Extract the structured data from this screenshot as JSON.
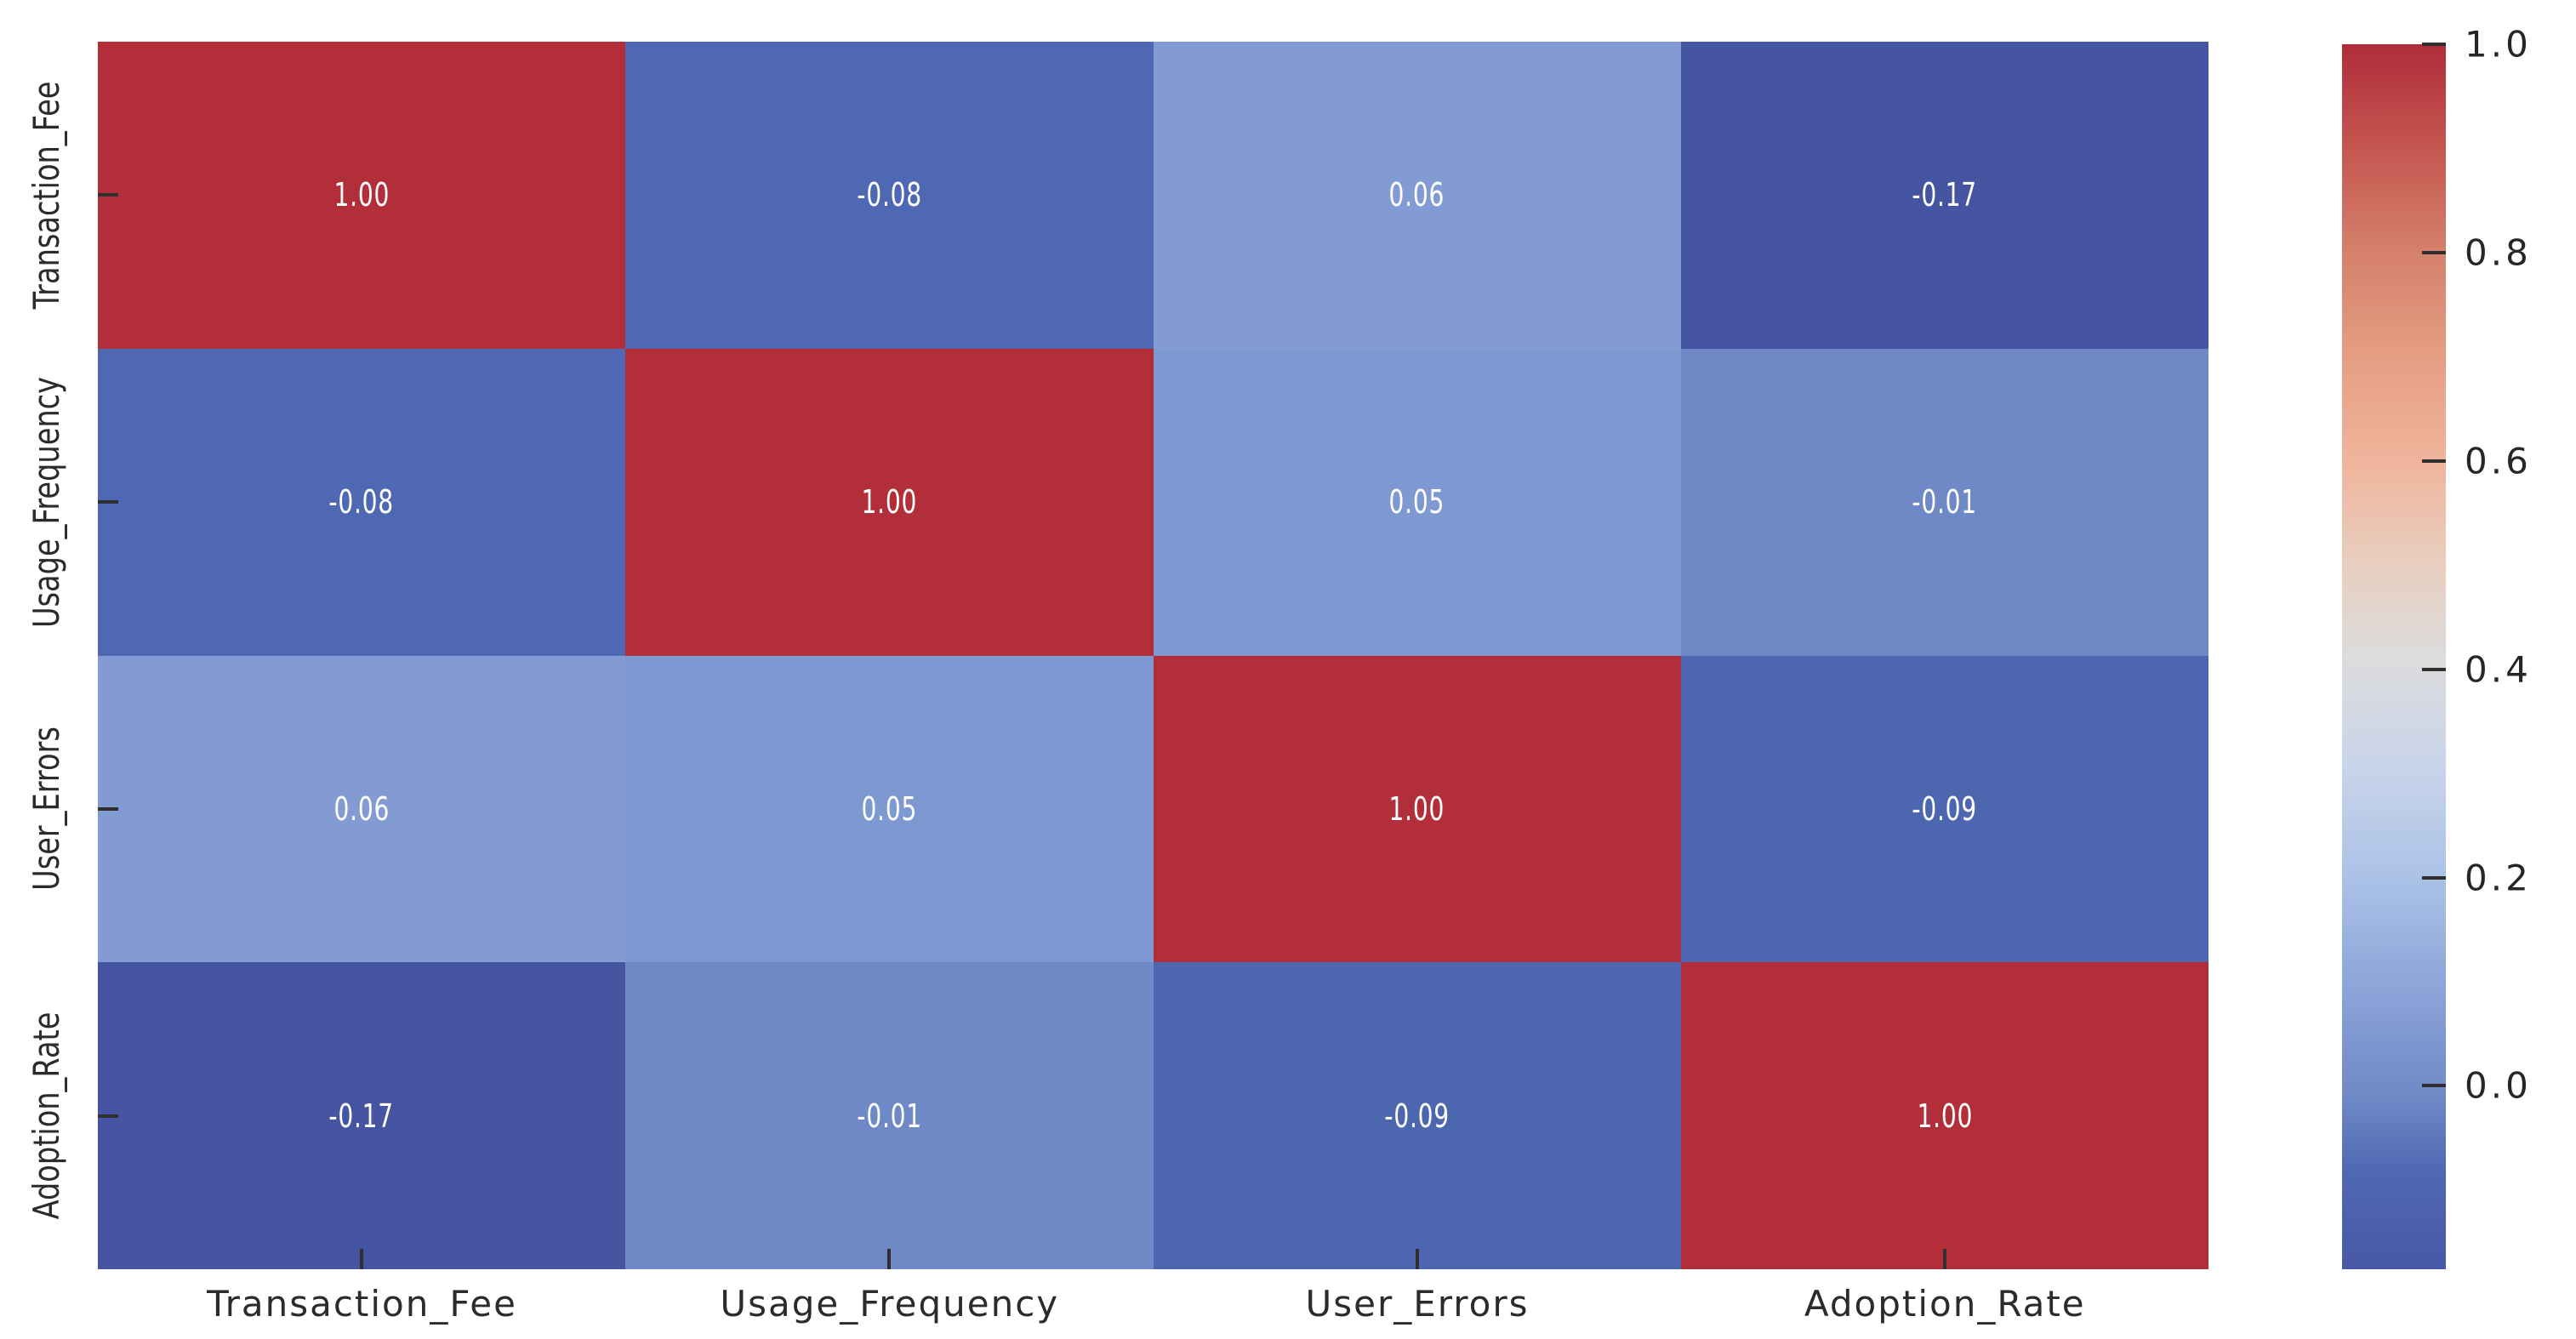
{
  "figure": {
    "background": "#ffffff",
    "axis_text_color": "#2b2b2b",
    "tick_mark_color": "#2f2f2f"
  },
  "chart_data": {
    "type": "heatmap",
    "title": "",
    "xlabel": "",
    "ylabel": "",
    "categories": [
      "Transaction_Fee",
      "Usage_Frequency",
      "User_Errors",
      "Adoption_Rate"
    ],
    "matrix": [
      [
        1.0,
        -0.08,
        0.06,
        -0.17
      ],
      [
        -0.08,
        1.0,
        0.05,
        -0.01
      ],
      [
        0.06,
        0.05,
        1.0,
        -0.09
      ],
      [
        -0.17,
        -0.01,
        -0.09,
        1.0
      ]
    ],
    "cell_labels": [
      [
        "1.00",
        "-0.08",
        "0.06",
        "-0.17"
      ],
      [
        "-0.08",
        "1.00",
        "0.05",
        "-0.01"
      ],
      [
        "0.06",
        "0.05",
        "1.00",
        "-0.09"
      ],
      [
        "-0.17",
        "-0.01",
        "-0.09",
        "1.00"
      ]
    ],
    "cell_colors": [
      [
        "#b22f39",
        "#4f68b3",
        "#829bd3",
        "#4555a1"
      ],
      [
        "#4f68b3",
        "#b22f39",
        "#7e98d1",
        "#6e89c6"
      ],
      [
        "#829bd3",
        "#7e98d1",
        "#b22f39",
        "#4d66b0"
      ],
      [
        "#4555a1",
        "#6e89c6",
        "#4d66b0",
        "#b22f39"
      ]
    ],
    "annotation_color": "#ffffff",
    "colormap": "coolwarm",
    "grid": false,
    "colorbar": {
      "position": "right",
      "vmax": 1.0,
      "vmin": -0.17,
      "ticks": [
        1.0,
        0.8,
        0.6,
        0.4,
        0.2,
        0.0
      ],
      "tick_labels": [
        "1.0",
        "0.8",
        "0.6",
        "0.4",
        "0.2",
        "0.0"
      ],
      "gradient_stops": [
        {
          "pos": 0,
          "color": "#b02c3a"
        },
        {
          "pos": 8,
          "color": "#c4544f"
        },
        {
          "pos": 17,
          "color": "#d5806c"
        },
        {
          "pos": 25,
          "color": "#e49c82"
        },
        {
          "pos": 34,
          "color": "#f0b49c"
        },
        {
          "pos": 42,
          "color": "#e9cdbd"
        },
        {
          "pos": 50,
          "color": "#dcdcdc"
        },
        {
          "pos": 59,
          "color": "#c9d4ea"
        },
        {
          "pos": 68,
          "color": "#abc2e7"
        },
        {
          "pos": 80,
          "color": "#829bd3"
        },
        {
          "pos": 86,
          "color": "#6e89c6"
        },
        {
          "pos": 92,
          "color": "#4f68b3"
        },
        {
          "pos": 100,
          "color": "#4858a9"
        }
      ]
    }
  }
}
